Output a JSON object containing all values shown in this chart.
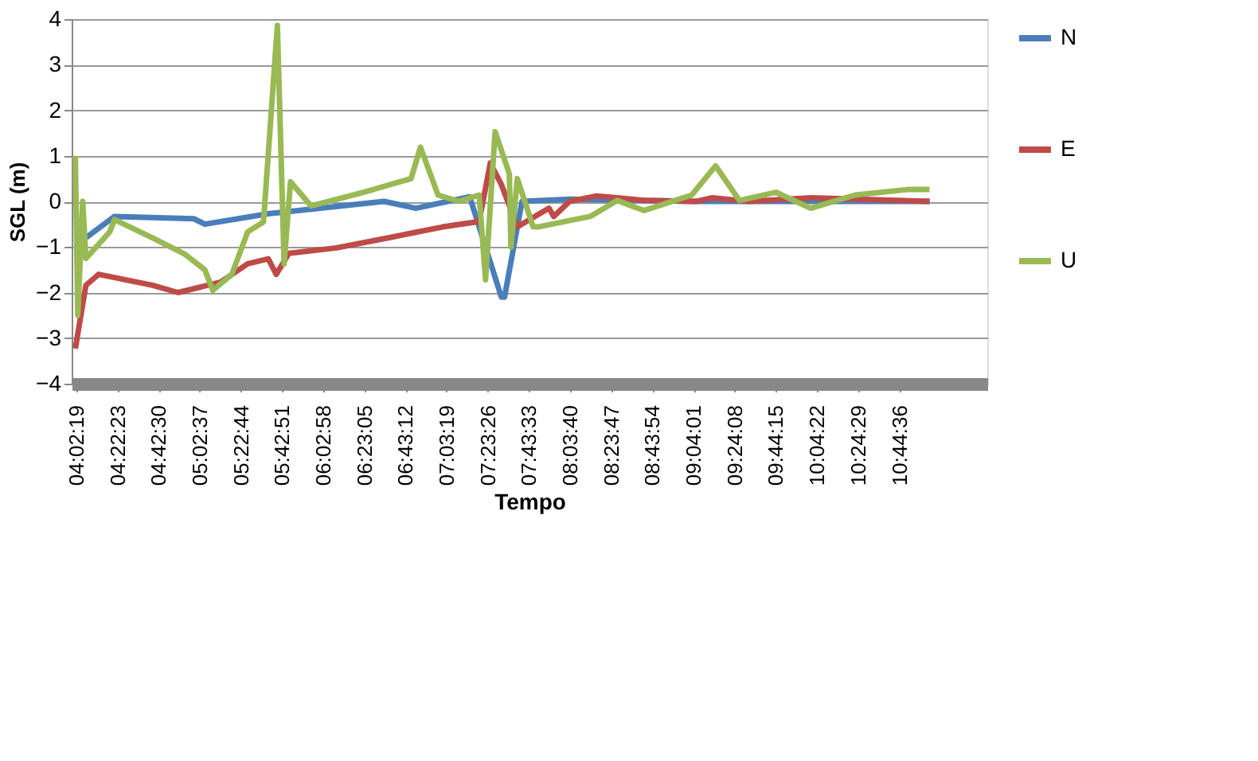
{
  "chart_data": {
    "type": "line",
    "xlabel": "Tempo",
    "ylabel": "SGL (m)",
    "xlim": [
      4.0,
      11.46
    ],
    "ylim": [
      -4,
      4
    ],
    "yticks": [
      -4,
      -3,
      -2,
      -1,
      0,
      1,
      2,
      3,
      4
    ],
    "xticks": [
      {
        "value": 4.0386,
        "label": "04:02:19"
      },
      {
        "value": 4.3731,
        "label": "04:22:23"
      },
      {
        "value": 4.7083,
        "label": "04:42:30"
      },
      {
        "value": 5.0436,
        "label": "05:02:37"
      },
      {
        "value": 5.3789,
        "label": "05:22:44"
      },
      {
        "value": 5.7142,
        "label": "05:42:51"
      },
      {
        "value": 6.0494,
        "label": "06:02:58"
      },
      {
        "value": 6.3847,
        "label": "06:23:05"
      },
      {
        "value": 6.72,
        "label": "06:43:12"
      },
      {
        "value": 7.0553,
        "label": "07:03:19"
      },
      {
        "value": 7.3906,
        "label": "07:23:26"
      },
      {
        "value": 7.7258,
        "label": "07:43:33"
      },
      {
        "value": 8.0611,
        "label": "08:03:40"
      },
      {
        "value": 8.3964,
        "label": "08:23:47"
      },
      {
        "value": 8.7317,
        "label": "08:43:54"
      },
      {
        "value": 9.0669,
        "label": "09:04:01"
      },
      {
        "value": 9.4022,
        "label": "09:24:08"
      },
      {
        "value": 9.7375,
        "label": "09:44:15"
      },
      {
        "value": 10.0728,
        "label": "10:04:22"
      },
      {
        "value": 10.4081,
        "label": "10:24:29"
      },
      {
        "value": 10.7433,
        "label": "10:44:36"
      }
    ],
    "grid": "y",
    "legend": "right",
    "marker": "none",
    "line_style": "solid",
    "series": [
      {
        "name": "N",
        "color": "#4a7ebb",
        "x": [
          4.116,
          4.349,
          4.995,
          5.085,
          5.602,
          6.545,
          6.804,
          7.243,
          7.501,
          7.527,
          7.669,
          8.057,
          9.091,
          9.866,
          10.99
        ],
        "values": [
          -0.8,
          -0.33,
          -0.38,
          -0.5,
          -0.27,
          0.0,
          -0.15,
          0.1,
          -2.1,
          -2.1,
          0.0,
          0.05,
          0.0,
          0.0,
          0.0
        ]
      },
      {
        "name": "E",
        "color": "#be4b48",
        "x": [
          4.03,
          4.116,
          4.22,
          4.659,
          4.866,
          5.214,
          5.434,
          5.602,
          5.667,
          5.77,
          6.158,
          6.597,
          7.023,
          7.32,
          7.411,
          7.501,
          7.631,
          7.889,
          7.928,
          8.057,
          8.277,
          8.664,
          9.091,
          9.22,
          9.517,
          10.034,
          10.99
        ],
        "values": [
          -3.23,
          -1.84,
          -1.6,
          -1.84,
          -2.0,
          -1.77,
          -1.37,
          -1.26,
          -1.6,
          -1.14,
          -1.02,
          -0.79,
          -0.56,
          -0.44,
          0.84,
          0.37,
          -0.56,
          -0.15,
          -0.33,
          0.0,
          0.12,
          0.02,
          0.0,
          0.08,
          0.0,
          0.08,
          0.0
        ]
      },
      {
        "name": "U",
        "color": "#98b954",
        "x": [
          4.03,
          4.05,
          4.09,
          4.116,
          4.31,
          4.349,
          4.659,
          4.917,
          5.085,
          5.15,
          5.305,
          5.434,
          5.563,
          5.676,
          5.731,
          5.783,
          5.951,
          6.377,
          6.765,
          6.842,
          6.985,
          7.153,
          7.32,
          7.372,
          7.45,
          7.566,
          7.579,
          7.631,
          7.76,
          7.799,
          8.225,
          8.445,
          8.664,
          9.052,
          9.246,
          9.44,
          9.737,
          10.021,
          10.383,
          10.809,
          10.99
        ],
        "values": [
          1.0,
          -2.5,
          0.0,
          -1.25,
          -0.67,
          -0.4,
          -0.8,
          -1.15,
          -1.5,
          -1.95,
          -1.6,
          -0.67,
          -0.45,
          3.86,
          -1.37,
          0.43,
          -0.1,
          0.2,
          0.5,
          1.19,
          0.14,
          0.0,
          0.14,
          -1.72,
          1.53,
          0.6,
          -1.0,
          0.5,
          -0.56,
          -0.56,
          -0.33,
          0.02,
          -0.2,
          0.14,
          0.78,
          0.02,
          0.2,
          -0.15,
          0.14,
          0.26,
          0.26
        ]
      }
    ]
  }
}
